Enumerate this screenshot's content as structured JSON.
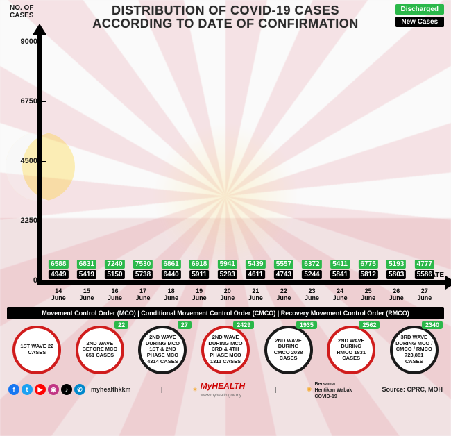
{
  "title_line1": "DISTRIBUTION OF COVID-19 CASES",
  "title_line2": "ACCORDING TO DATE OF CONFIRMATION",
  "y_axis_label_line1": "NO. OF",
  "y_axis_label_line2": "CASES",
  "x_axis_label": "DATE",
  "legend": {
    "discharged": {
      "label": "Discharged",
      "bg": "#2bb84a"
    },
    "newcases": {
      "label": "New Cases",
      "bg": "#000000"
    }
  },
  "chart": {
    "type": "bar",
    "ymax": 9000,
    "yticks": [
      0,
      2250,
      4500,
      6750,
      9000
    ],
    "bar_color": "#d01c1c",
    "discharged_bg": "#2bb84a",
    "newcases_bg": "#000000",
    "background": "#ffffff00",
    "data": [
      {
        "day": "14",
        "month": "June",
        "discharged": 6588,
        "new": 4949
      },
      {
        "day": "15",
        "month": "June",
        "discharged": 6831,
        "new": 5419
      },
      {
        "day": "16",
        "month": "June",
        "discharged": 7240,
        "new": 5150
      },
      {
        "day": "17",
        "month": "June",
        "discharged": 7530,
        "new": 5738
      },
      {
        "day": "18",
        "month": "June",
        "discharged": 6861,
        "new": 6440
      },
      {
        "day": "19",
        "month": "June",
        "discharged": 6918,
        "new": 5911
      },
      {
        "day": "20",
        "month": "June",
        "discharged": 5941,
        "new": 5293
      },
      {
        "day": "21",
        "month": "June",
        "discharged": 5439,
        "new": 4611
      },
      {
        "day": "22",
        "month": "June",
        "discharged": 5557,
        "new": 4743
      },
      {
        "day": "23",
        "month": "June",
        "discharged": 6372,
        "new": 5244
      },
      {
        "day": "24",
        "month": "June",
        "discharged": 5411,
        "new": 5841
      },
      {
        "day": "25",
        "month": "June",
        "discharged": 6775,
        "new": 5812
      },
      {
        "day": "26",
        "month": "June",
        "discharged": 5193,
        "new": 5803
      },
      {
        "day": "27",
        "month": "June",
        "discharged": 4777,
        "new": 5586
      }
    ]
  },
  "mco_strip": "Movement Control Order (MCO)  |  Conditional Movement Control Order (CMCO)  |  Recovery Movement Control Order (RMCO)",
  "waves": [
    {
      "text": "1ST WAVE 22 CASES",
      "ring": "#d01c1c",
      "badge": null
    },
    {
      "text": "2ND WAVE BEFORE MCO 651 CASES",
      "ring": "#d01c1c",
      "badge": "22",
      "badge_bg": "#2bb84a"
    },
    {
      "text": "2ND WAVE DURING MCO 1ST & 2ND PHASE MCO 4314 CASES",
      "ring": "#1a1a1a",
      "badge": "27",
      "badge_bg": "#2bb84a"
    },
    {
      "text": "2ND WAVE DURING MCO 3RD & 4TH PHASE MCO 1311 CASES",
      "ring": "#d01c1c",
      "badge": "2429",
      "badge_bg": "#2bb84a"
    },
    {
      "text": "2ND WAVE DURING CMCO 2038 CASES",
      "ring": "#1a1a1a",
      "badge": "1935",
      "badge_bg": "#2bb84a"
    },
    {
      "text": "2ND WAVE DURING RMCO 1831 CASES",
      "ring": "#d01c1c",
      "badge": "2562",
      "badge_bg": "#2bb84a"
    },
    {
      "text": "3RD WAVE DURING MCO / CMCO / RMCO 723,881 CASES",
      "ring": "#1a1a1a",
      "badge": "2340",
      "badge_bg": "#2bb84a"
    }
  ],
  "footer": {
    "socials": [
      {
        "glyph": "f",
        "bg": "#1877f2"
      },
      {
        "glyph": "t",
        "bg": "#1da1f2"
      },
      {
        "glyph": "▶",
        "bg": "#ff0000"
      },
      {
        "glyph": "◉",
        "bg": "#c13584"
      },
      {
        "glyph": "♪",
        "bg": "#000000"
      },
      {
        "glyph": "✆",
        "bg": "#0088cc"
      }
    ],
    "handle": "myhealthkkm",
    "brand_main": "MyHEALTH",
    "brand_sub": "www.myhealth.gov.my",
    "campaign_l1": "Bersama",
    "campaign_l2": "Hentikan Wabak",
    "campaign_l3": "COVID-19",
    "source": "Source: CPRC, MOH"
  }
}
